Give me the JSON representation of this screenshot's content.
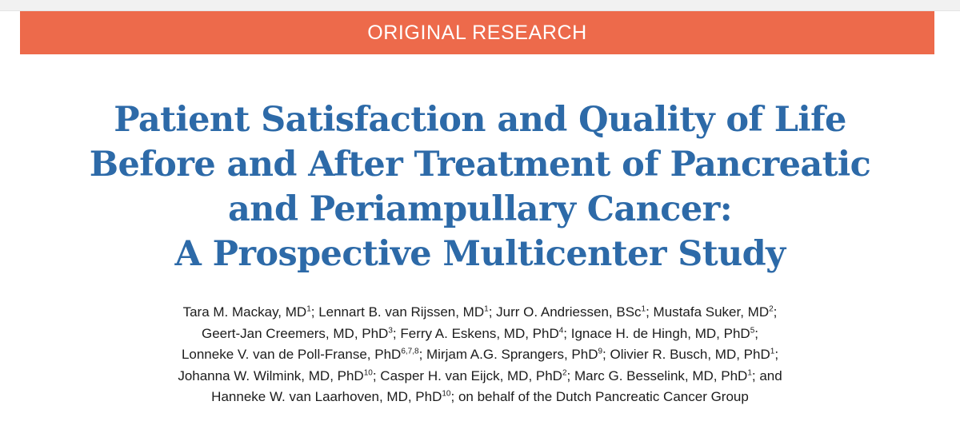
{
  "banner": {
    "label": "ORIGINAL RESEARCH",
    "color": "#ed6a4b"
  },
  "title": {
    "lines": [
      "Patient Satisfaction and Quality of Life",
      "Before and After Treatment of Pancreatic",
      "and Periampullary Cancer:",
      "A Prospective Multicenter Study"
    ],
    "color": "#2d6aa8"
  },
  "authors": {
    "lines": [
      [
        {
          "t": "Tara M. Mackay, MD"
        },
        {
          "sup": "1"
        },
        {
          "t": "; Lennart B. van Rijssen, MD"
        },
        {
          "sup": "1"
        },
        {
          "t": "; Jurr O. Andriessen, BSc"
        },
        {
          "sup": "1"
        },
        {
          "t": "; Mustafa Suker, MD"
        },
        {
          "sup": "2"
        },
        {
          "t": ";"
        }
      ],
      [
        {
          "t": "Geert-Jan Creemers, MD, PhD"
        },
        {
          "sup": "3"
        },
        {
          "t": "; Ferry A. Eskens, MD, PhD"
        },
        {
          "sup": "4"
        },
        {
          "t": "; Ignace H. de Hingh, MD, PhD"
        },
        {
          "sup": "5"
        },
        {
          "t": ";"
        }
      ],
      [
        {
          "t": "Lonneke V. van de Poll-Franse, PhD"
        },
        {
          "sup": "6,7,8"
        },
        {
          "t": "; Mirjam A.G. Sprangers, PhD"
        },
        {
          "sup": "9"
        },
        {
          "t": "; Olivier R. Busch, MD, PhD"
        },
        {
          "sup": "1"
        },
        {
          "t": ";"
        }
      ],
      [
        {
          "t": "Johanna W. Wilmink, MD, PhD"
        },
        {
          "sup": "10"
        },
        {
          "t": "; Casper H. van Eijck, MD, PhD"
        },
        {
          "sup": "2"
        },
        {
          "t": "; Marc G. Besselink, MD, PhD"
        },
        {
          "sup": "1"
        },
        {
          "t": "; and"
        }
      ],
      [
        {
          "t": "Hanneke W. van Laarhoven, MD, PhD"
        },
        {
          "sup": "10"
        },
        {
          "t": "; on behalf of the Dutch Pancreatic Cancer Group"
        }
      ]
    ]
  }
}
